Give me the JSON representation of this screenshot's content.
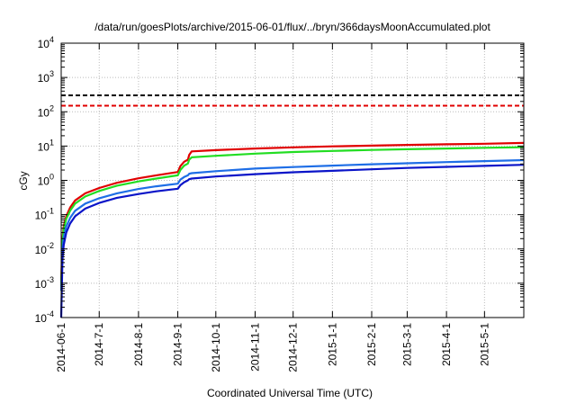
{
  "chart_data": {
    "type": "line",
    "title": "/data/run/goesPlots/archive/2015-06-01/flux/../bryn/366daysMoonAccumulated.plot",
    "xlabel": "Coordinated Universal Time (UTC)",
    "ylabel": "cGy",
    "y_scale": "log",
    "ylim": [
      0.0001,
      10000
    ],
    "xlim": [
      "2014-06-01",
      "2015-06-01"
    ],
    "grid": true,
    "legend": "none",
    "x_tick_labels": [
      "2014-06-1",
      "2014-7-1",
      "2014-8-1",
      "2014-9-1",
      "2014-10-1",
      "2014-11-1",
      "2014-12-1",
      "2015-1-1",
      "2015-2-1",
      "2015-3-1",
      "2015-4-1",
      "2015-5-1"
    ],
    "x_ticks": [
      "2014-06-01",
      "2014-07-01",
      "2014-08-01",
      "2014-09-01",
      "2014-10-01",
      "2014-11-01",
      "2014-12-01",
      "2015-01-01",
      "2015-02-01",
      "2015-03-01",
      "2015-04-01",
      "2015-05-01"
    ],
    "y_ticks": [
      {
        "value": 0.0001,
        "base": "10",
        "exp": "-4"
      },
      {
        "value": 0.001,
        "base": "10",
        "exp": "-3"
      },
      {
        "value": 0.01,
        "base": "10",
        "exp": "-2"
      },
      {
        "value": 0.1,
        "base": "10",
        "exp": "-1"
      },
      {
        "value": 1,
        "base": "10",
        "exp": "0"
      },
      {
        "value": 10,
        "base": "10",
        "exp": "1"
      },
      {
        "value": 100,
        "base": "10",
        "exp": "2"
      },
      {
        "value": 1000,
        "base": "10",
        "exp": "3"
      },
      {
        "value": 10000,
        "base": "10",
        "exp": "4"
      }
    ],
    "thresholds": [
      {
        "value": 300,
        "color": "#000000",
        "style": "dashed"
      },
      {
        "value": 150,
        "color": "#e00000",
        "style": "dashed"
      }
    ],
    "series": [
      {
        "color": "#e00000",
        "x": [
          "2014-06-01",
          "2014-06-02",
          "2014-06-03",
          "2014-06-05",
          "2014-06-08",
          "2014-06-12",
          "2014-06-20",
          "2014-07-01",
          "2014-07-15",
          "2014-08-01",
          "2014-08-15",
          "2014-09-01",
          "2014-09-03",
          "2014-09-06",
          "2014-09-09",
          "2014-09-10",
          "2014-09-12",
          "2014-10-01",
          "2014-11-01",
          "2014-12-01",
          "2015-01-01",
          "2015-02-01",
          "2015-03-01",
          "2015-04-01",
          "2015-05-01",
          "2015-06-01"
        ],
        "y": [
          0.001,
          0.02,
          0.045,
          0.09,
          0.16,
          0.26,
          0.42,
          0.6,
          0.85,
          1.15,
          1.4,
          1.75,
          2.6,
          3.5,
          4.0,
          5.5,
          7.0,
          7.6,
          8.5,
          9.2,
          9.8,
          10.3,
          10.8,
          11.3,
          11.7,
          12.3
        ]
      },
      {
        "color": "#22dd22",
        "x": [
          "2014-06-01",
          "2014-06-02",
          "2014-06-03",
          "2014-06-05",
          "2014-06-08",
          "2014-06-12",
          "2014-06-20",
          "2014-07-01",
          "2014-07-15",
          "2014-08-01",
          "2014-08-15",
          "2014-09-01",
          "2014-09-03",
          "2014-09-06",
          "2014-09-09",
          "2014-09-10",
          "2014-09-12",
          "2014-10-01",
          "2014-11-01",
          "2014-12-01",
          "2015-01-01",
          "2015-02-01",
          "2015-03-01",
          "2015-04-01",
          "2015-05-01",
          "2015-06-01"
        ],
        "y": [
          0.0008,
          0.016,
          0.037,
          0.075,
          0.13,
          0.21,
          0.34,
          0.49,
          0.7,
          0.93,
          1.13,
          1.4,
          2.0,
          2.7,
          3.1,
          4.0,
          4.7,
          5.2,
          6.0,
          6.7,
          7.2,
          7.7,
          8.1,
          8.5,
          8.9,
          9.3
        ]
      },
      {
        "color": "#1e6ee6",
        "x": [
          "2014-06-01",
          "2014-06-02",
          "2014-06-03",
          "2014-06-05",
          "2014-06-08",
          "2014-06-12",
          "2014-06-20",
          "2014-07-01",
          "2014-07-15",
          "2014-08-01",
          "2014-08-15",
          "2014-09-01",
          "2014-09-03",
          "2014-09-06",
          "2014-09-09",
          "2014-09-10",
          "2014-09-12",
          "2014-10-01",
          "2014-11-01",
          "2014-12-01",
          "2015-01-01",
          "2015-02-01",
          "2015-03-01",
          "2015-04-01",
          "2015-05-01",
          "2015-06-01"
        ],
        "y": [
          0.0006,
          0.009,
          0.021,
          0.045,
          0.08,
          0.13,
          0.21,
          0.3,
          0.42,
          0.56,
          0.67,
          0.8,
          1.05,
          1.25,
          1.4,
          1.55,
          1.62,
          1.85,
          2.2,
          2.45,
          2.7,
          2.95,
          3.15,
          3.4,
          3.65,
          3.9
        ]
      },
      {
        "color": "#0a14c8",
        "x": [
          "2014-06-01",
          "2014-06-02",
          "2014-06-03",
          "2014-06-05",
          "2014-06-08",
          "2014-06-12",
          "2014-06-20",
          "2014-07-01",
          "2014-07-15",
          "2014-08-01",
          "2014-08-15",
          "2014-09-01",
          "2014-09-03",
          "2014-09-06",
          "2014-09-09",
          "2014-09-10",
          "2014-09-12",
          "2014-10-01",
          "2014-11-01",
          "2014-12-01",
          "2015-01-01",
          "2015-02-01",
          "2015-03-01",
          "2015-04-01",
          "2015-05-01",
          "2015-06-01"
        ],
        "y": [
          0.0001,
          0.005,
          0.013,
          0.03,
          0.055,
          0.09,
          0.15,
          0.22,
          0.31,
          0.4,
          0.48,
          0.57,
          0.72,
          0.88,
          1.0,
          1.08,
          1.13,
          1.3,
          1.52,
          1.72,
          1.9,
          2.1,
          2.3,
          2.48,
          2.65,
          2.85
        ]
      }
    ]
  }
}
